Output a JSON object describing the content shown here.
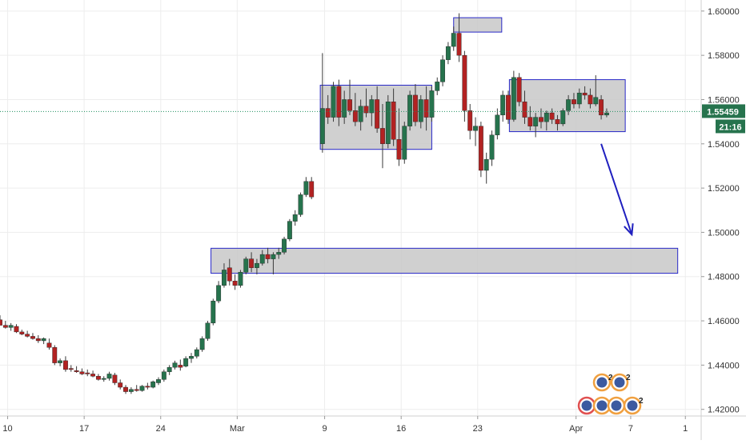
{
  "colors": {
    "background": "#ffffff",
    "grid": "#ededed",
    "up_candle": "#26734d",
    "down_candle": "#b22222",
    "wick": "#3a3a3a",
    "zone_fill": "#c8c8c8",
    "zone_stroke": "#2828c8",
    "price_line": "#1f8f5f",
    "arrow": "#1f1fbf",
    "axis_text": "#333333",
    "price_tag_bg": "#26734d",
    "price_tag_text": "#ffffff"
  },
  "chart_data": {
    "type": "candlestick",
    "x_tick_labels": [
      {
        "label": "10",
        "day": 10
      },
      {
        "label": "17",
        "day": 17
      },
      {
        "label": "24",
        "day": 24
      },
      {
        "label": "Mar",
        "day": 31
      },
      {
        "label": "9",
        "day": 39
      },
      {
        "label": "16",
        "day": 46
      },
      {
        "label": "23",
        "day": 53
      },
      {
        "label": "Apr",
        "day": 62
      },
      {
        "label": "7",
        "day": 67
      },
      {
        "label": "1",
        "day": 72
      }
    ],
    "y_tick_labels": [
      "1.60000",
      "1.58000",
      "1.56000",
      "1.54000",
      "1.52000",
      "1.50000",
      "1.48000",
      "1.46000",
      "1.44000",
      "1.42000"
    ],
    "y_tick_values": [
      1.6,
      1.58,
      1.56,
      1.54,
      1.52,
      1.5,
      1.48,
      1.46,
      1.44,
      1.42
    ],
    "ylim": [
      1.417,
      1.605
    ],
    "xlim": [
      9.3,
      73.3
    ],
    "current_price": 1.55459,
    "current_price_label": "1.55459",
    "countdown_label": "21:16",
    "zones": [
      {
        "name": "support-zone-1.48",
        "x_start": 28.6,
        "x_end": 71.3,
        "y_low": 1.4815,
        "y_high": 1.4928
      },
      {
        "name": "consolidation-zone-1",
        "x_start": 38.6,
        "x_end": 48.8,
        "y_low": 1.5375,
        "y_high": 1.5665
      },
      {
        "name": "top-zone-1.59",
        "x_start": 50.8,
        "x_end": 55.2,
        "y_low": 1.5905,
        "y_high": 1.597
      },
      {
        "name": "consolidation-zone-2",
        "x_start": 55.9,
        "x_end": 66.5,
        "y_low": 1.5455,
        "y_high": 1.569
      }
    ],
    "arrow": {
      "x_start": 64.3,
      "y_start": 1.54,
      "x_end": 67.1,
      "y_end": 1.499
    },
    "candles": [
      [
        9.3,
        1.4605,
        1.4625,
        1.458,
        1.458
      ],
      [
        9.8,
        1.458,
        1.46,
        1.4565,
        1.457
      ],
      [
        10.3,
        1.457,
        1.459,
        1.4555,
        1.458
      ],
      [
        10.8,
        1.4575,
        1.4585,
        1.4545,
        1.455
      ],
      [
        11.3,
        1.455,
        1.456,
        1.4535,
        1.454
      ],
      [
        11.8,
        1.454,
        1.4555,
        1.4525,
        1.453
      ],
      [
        12.3,
        1.453,
        1.4545,
        1.4515,
        1.452
      ],
      [
        12.8,
        1.452,
        1.4535,
        1.45,
        1.451
      ],
      [
        13.3,
        1.451,
        1.4525,
        1.4495,
        1.452
      ],
      [
        13.8,
        1.45,
        1.452,
        1.447,
        1.448
      ],
      [
        14.3,
        1.448,
        1.449,
        1.44,
        1.441
      ],
      [
        14.8,
        1.441,
        1.443,
        1.4395,
        1.442
      ],
      [
        15.3,
        1.442,
        1.444,
        1.437,
        1.438
      ],
      [
        15.8,
        1.4385,
        1.44,
        1.437,
        1.438
      ],
      [
        16.3,
        1.4375,
        1.4395,
        1.4365,
        1.437
      ],
      [
        16.8,
        1.437,
        1.4385,
        1.4355,
        1.436
      ],
      [
        17.3,
        1.4365,
        1.438,
        1.435,
        1.436
      ],
      [
        17.8,
        1.436,
        1.4375,
        1.4345,
        1.435
      ],
      [
        18.3,
        1.435,
        1.436,
        1.433,
        1.4335
      ],
      [
        18.8,
        1.4335,
        1.435,
        1.4325,
        1.434
      ],
      [
        19.3,
        1.434,
        1.437,
        1.433,
        1.436
      ],
      [
        19.8,
        1.4355,
        1.4365,
        1.431,
        1.432
      ],
      [
        20.3,
        1.432,
        1.4335,
        1.429,
        1.43
      ],
      [
        20.8,
        1.43,
        1.431,
        1.427,
        1.428
      ],
      [
        21.3,
        1.428,
        1.43,
        1.427,
        1.429
      ],
      [
        21.8,
        1.429,
        1.431,
        1.428,
        1.4285
      ],
      [
        22.3,
        1.4285,
        1.431,
        1.428,
        1.4305
      ],
      [
        22.8,
        1.4305,
        1.432,
        1.429,
        1.43
      ],
      [
        23.3,
        1.43,
        1.433,
        1.4295,
        1.4325
      ],
      [
        23.8,
        1.432,
        1.4345,
        1.431,
        1.4335
      ],
      [
        24.3,
        1.4335,
        1.438,
        1.4325,
        1.437
      ],
      [
        24.8,
        1.437,
        1.44,
        1.4355,
        1.439
      ],
      [
        25.3,
        1.439,
        1.442,
        1.438,
        1.441
      ],
      [
        25.8,
        1.44,
        1.4425,
        1.4375,
        1.439
      ],
      [
        26.3,
        1.4395,
        1.444,
        1.439,
        1.443
      ],
      [
        26.8,
        1.443,
        1.4455,
        1.441,
        1.444
      ],
      [
        27.3,
        1.444,
        1.448,
        1.443,
        1.447
      ],
      [
        27.8,
        1.447,
        1.453,
        1.446,
        1.452
      ],
      [
        28.3,
        1.452,
        1.46,
        1.451,
        1.459
      ],
      [
        28.8,
        1.459,
        1.47,
        1.458,
        1.469
      ],
      [
        29.3,
        1.469,
        1.478,
        1.468,
        1.476
      ],
      [
        29.8,
        1.476,
        1.486,
        1.475,
        1.483
      ],
      [
        30.3,
        1.484,
        1.488,
        1.476,
        1.478
      ],
      [
        30.8,
        1.478,
        1.481,
        1.474,
        1.476
      ],
      [
        31.3,
        1.476,
        1.483,
        1.475,
        1.482
      ],
      [
        31.8,
        1.482,
        1.489,
        1.481,
        1.488
      ],
      [
        32.3,
        1.488,
        1.491,
        1.482,
        1.484
      ],
      [
        32.8,
        1.484,
        1.488,
        1.481,
        1.486
      ],
      [
        33.3,
        1.486,
        1.492,
        1.485,
        1.49
      ],
      [
        33.8,
        1.49,
        1.493,
        1.486,
        1.488
      ],
      [
        34.3,
        1.488,
        1.491,
        1.481,
        1.49
      ],
      [
        34.8,
        1.49,
        1.493,
        1.488,
        1.491
      ],
      [
        35.3,
        1.491,
        1.498,
        1.49,
        1.497
      ],
      [
        35.8,
        1.497,
        1.506,
        1.496,
        1.505
      ],
      [
        36.3,
        1.505,
        1.51,
        1.503,
        1.508
      ],
      [
        36.8,
        1.508,
        1.518,
        1.507,
        1.517
      ],
      [
        37.3,
        1.517,
        1.525,
        1.516,
        1.523
      ],
      [
        37.8,
        1.523,
        1.525,
        1.515,
        1.516
      ],
      [
        38.8,
        1.54,
        1.581,
        1.536,
        1.556
      ],
      [
        39.3,
        1.556,
        1.562,
        1.549,
        1.552
      ],
      [
        39.8,
        1.552,
        1.568,
        1.55,
        1.566
      ],
      [
        40.3,
        1.566,
        1.569,
        1.548,
        1.552
      ],
      [
        40.8,
        1.552,
        1.564,
        1.549,
        1.56
      ],
      [
        41.3,
        1.56,
        1.569,
        1.553,
        1.555
      ],
      [
        41.8,
        1.555,
        1.563,
        1.548,
        1.55
      ],
      [
        42.3,
        1.55,
        1.56,
        1.546,
        1.557
      ],
      [
        42.8,
        1.557,
        1.565,
        1.552,
        1.554
      ],
      [
        43.3,
        1.554,
        1.562,
        1.548,
        1.56
      ],
      [
        43.8,
        1.56,
        1.566,
        1.545,
        1.547
      ],
      [
        44.3,
        1.547,
        1.558,
        1.529,
        1.54
      ],
      [
        44.8,
        1.54,
        1.562,
        1.538,
        1.559
      ],
      [
        45.3,
        1.559,
        1.565,
        1.539,
        1.542
      ],
      [
        45.8,
        1.542,
        1.556,
        1.53,
        1.533
      ],
      [
        46.3,
        1.533,
        1.55,
        1.531,
        1.548
      ],
      [
        46.8,
        1.548,
        1.564,
        1.546,
        1.562
      ],
      [
        47.3,
        1.562,
        1.567,
        1.548,
        1.55
      ],
      [
        47.8,
        1.55,
        1.562,
        1.547,
        1.56
      ],
      [
        48.3,
        1.56,
        1.566,
        1.546,
        1.552
      ],
      [
        48.8,
        1.552,
        1.566,
        1.55,
        1.564
      ],
      [
        49.3,
        1.564,
        1.57,
        1.562,
        1.568
      ],
      [
        49.8,
        1.568,
        1.58,
        1.566,
        1.578
      ],
      [
        50.3,
        1.578,
        1.586,
        1.576,
        1.584
      ],
      [
        50.8,
        1.584,
        1.593,
        1.582,
        1.59
      ],
      [
        51.3,
        1.59,
        1.599,
        1.577,
        1.58
      ],
      [
        51.8,
        1.58,
        1.582,
        1.55,
        1.555
      ],
      [
        52.3,
        1.555,
        1.558,
        1.542,
        1.546
      ],
      [
        52.8,
        1.546,
        1.552,
        1.539,
        1.548
      ],
      [
        53.3,
        1.548,
        1.55,
        1.525,
        1.528
      ],
      [
        53.8,
        1.528,
        1.536,
        1.522,
        1.533
      ],
      [
        54.3,
        1.533,
        1.546,
        1.53,
        1.544
      ],
      [
        54.8,
        1.544,
        1.556,
        1.542,
        1.553
      ],
      [
        55.3,
        1.553,
        1.564,
        1.55,
        1.562
      ],
      [
        55.8,
        1.562,
        1.564,
        1.549,
        1.551
      ],
      [
        56.3,
        1.551,
        1.573,
        1.55,
        1.57
      ],
      [
        56.8,
        1.57,
        1.572,
        1.557,
        1.559
      ],
      [
        57.3,
        1.559,
        1.564,
        1.549,
        1.552
      ],
      [
        57.8,
        1.552,
        1.557,
        1.546,
        1.548
      ],
      [
        58.3,
        1.548,
        1.554,
        1.543,
        1.552
      ],
      [
        58.8,
        1.552,
        1.556,
        1.547,
        1.55
      ],
      [
        59.3,
        1.55,
        1.555,
        1.546,
        1.554
      ],
      [
        59.8,
        1.554,
        1.556,
        1.549,
        1.551
      ],
      [
        60.3,
        1.551,
        1.553,
        1.546,
        1.549
      ],
      [
        60.8,
        1.549,
        1.556,
        1.548,
        1.555
      ],
      [
        61.3,
        1.555,
        1.562,
        1.553,
        1.56
      ],
      [
        61.8,
        1.56,
        1.563,
        1.556,
        1.558
      ],
      [
        62.3,
        1.558,
        1.565,
        1.556,
        1.563
      ],
      [
        62.8,
        1.563,
        1.566,
        1.56,
        1.562
      ],
      [
        63.3,
        1.562,
        1.565,
        1.556,
        1.558
      ],
      [
        63.8,
        1.558,
        1.571,
        1.557,
        1.561
      ],
      [
        64.3,
        1.56,
        1.562,
        1.551,
        1.553
      ],
      [
        64.8,
        1.553,
        1.556,
        1.552,
        1.554
      ]
    ]
  }
}
